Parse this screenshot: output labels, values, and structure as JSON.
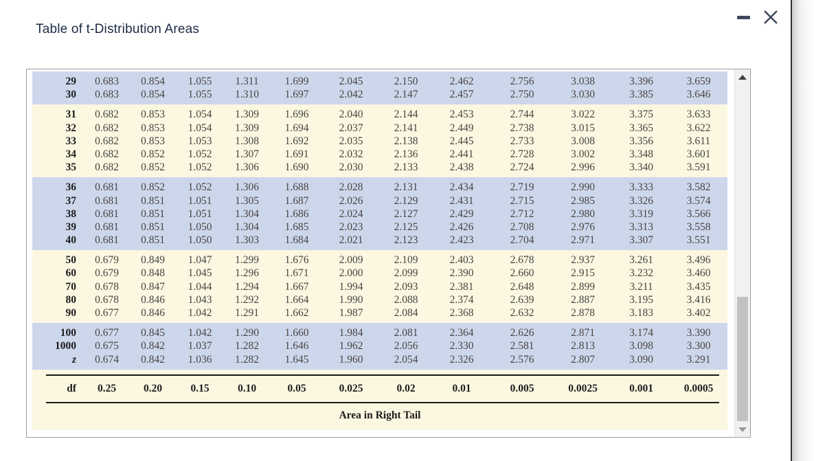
{
  "window": {
    "title": "Table of t-Distribution Areas",
    "controls": {
      "minimize_label": "minimize",
      "close_label": "close"
    }
  },
  "table": {
    "area_label": "Area in Right Tail",
    "header": {
      "df_label": "df",
      "areas": [
        "0.25",
        "0.20",
        "0.15",
        "0.10",
        "0.05",
        "0.025",
        "0.02",
        "0.01",
        "0.005",
        "0.0025",
        "0.001",
        "0.0005"
      ]
    },
    "row_groups": [
      {
        "bg": "blue",
        "rows": [
          {
            "df": "29",
            "values": [
              "0.683",
              "0.854",
              "1.055",
              "1.311",
              "1.699",
              "2.045",
              "2.150",
              "2.462",
              "2.756",
              "3.038",
              "3.396",
              "3.659"
            ]
          },
          {
            "df": "30",
            "values": [
              "0.683",
              "0.854",
              "1.055",
              "1.310",
              "1.697",
              "2.042",
              "2.147",
              "2.457",
              "2.750",
              "3.030",
              "3.385",
              "3.646"
            ]
          }
        ]
      },
      {
        "bg": "cream",
        "rows": [
          {
            "df": "31",
            "values": [
              "0.682",
              "0.853",
              "1.054",
              "1.309",
              "1.696",
              "2.040",
              "2.144",
              "2.453",
              "2.744",
              "3.022",
              "3.375",
              "3.633"
            ]
          },
          {
            "df": "32",
            "values": [
              "0.682",
              "0.853",
              "1.054",
              "1.309",
              "1.694",
              "2.037",
              "2.141",
              "2.449",
              "2.738",
              "3.015",
              "3.365",
              "3.622"
            ]
          },
          {
            "df": "33",
            "values": [
              "0.682",
              "0.853",
              "1.053",
              "1.308",
              "1.692",
              "2.035",
              "2.138",
              "2.445",
              "2.733",
              "3.008",
              "3.356",
              "3.611"
            ]
          },
          {
            "df": "34",
            "values": [
              "0.682",
              "0.852",
              "1.052",
              "1.307",
              "1.691",
              "2.032",
              "2.136",
              "2.441",
              "2.728",
              "3.002",
              "3.348",
              "3.601"
            ]
          },
          {
            "df": "35",
            "values": [
              "0.682",
              "0.852",
              "1.052",
              "1.306",
              "1.690",
              "2.030",
              "2.133",
              "2.438",
              "2.724",
              "2.996",
              "3.340",
              "3.591"
            ]
          }
        ]
      },
      {
        "bg": "blue",
        "rows": [
          {
            "df": "36",
            "values": [
              "0.681",
              "0.852",
              "1.052",
              "1.306",
              "1.688",
              "2.028",
              "2.131",
              "2.434",
              "2.719",
              "2.990",
              "3.333",
              "3.582"
            ]
          },
          {
            "df": "37",
            "values": [
              "0.681",
              "0.851",
              "1.051",
              "1.305",
              "1.687",
              "2.026",
              "2.129",
              "2.431",
              "2.715",
              "2.985",
              "3.326",
              "3.574"
            ]
          },
          {
            "df": "38",
            "values": [
              "0.681",
              "0.851",
              "1.051",
              "1.304",
              "1.686",
              "2.024",
              "2.127",
              "2.429",
              "2.712",
              "2.980",
              "3.319",
              "3.566"
            ]
          },
          {
            "df": "39",
            "values": [
              "0.681",
              "0.851",
              "1.050",
              "1.304",
              "1.685",
              "2.023",
              "2.125",
              "2.426",
              "2.708",
              "2.976",
              "3.313",
              "3.558"
            ]
          },
          {
            "df": "40",
            "values": [
              "0.681",
              "0.851",
              "1.050",
              "1.303",
              "1.684",
              "2.021",
              "2.123",
              "2.423",
              "2.704",
              "2.971",
              "3.307",
              "3.551"
            ]
          }
        ]
      },
      {
        "bg": "cream",
        "rows": [
          {
            "df": "50",
            "values": [
              "0.679",
              "0.849",
              "1.047",
              "1.299",
              "1.676",
              "2.009",
              "2.109",
              "2.403",
              "2.678",
              "2.937",
              "3.261",
              "3.496"
            ]
          },
          {
            "df": "60",
            "values": [
              "0.679",
              "0.848",
              "1.045",
              "1.296",
              "1.671",
              "2.000",
              "2.099",
              "2.390",
              "2.660",
              "2.915",
              "3.232",
              "3.460"
            ]
          },
          {
            "df": "70",
            "values": [
              "0.678",
              "0.847",
              "1.044",
              "1.294",
              "1.667",
              "1.994",
              "2.093",
              "2.381",
              "2.648",
              "2.899",
              "3.211",
              "3.435"
            ]
          },
          {
            "df": "80",
            "values": [
              "0.678",
              "0.846",
              "1.043",
              "1.292",
              "1.664",
              "1.990",
              "2.088",
              "2.374",
              "2.639",
              "2.887",
              "3.195",
              "3.416"
            ]
          },
          {
            "df": "90",
            "values": [
              "0.677",
              "0.846",
              "1.042",
              "1.291",
              "1.662",
              "1.987",
              "2.084",
              "2.368",
              "2.632",
              "2.878",
              "3.183",
              "3.402"
            ]
          }
        ]
      },
      {
        "bg": "blue",
        "rows": [
          {
            "df": "100",
            "values": [
              "0.677",
              "0.845",
              "1.042",
              "1.290",
              "1.660",
              "1.984",
              "2.081",
              "2.364",
              "2.626",
              "2.871",
              "3.174",
              "3.390"
            ]
          },
          {
            "df": "1000",
            "values": [
              "0.675",
              "0.842",
              "1.037",
              "1.282",
              "1.646",
              "1.962",
              "2.056",
              "2.330",
              "2.581",
              "2.813",
              "3.098",
              "3.300"
            ]
          },
          {
            "df": "z",
            "italic": true,
            "values": [
              "0.674",
              "0.842",
              "1.036",
              "1.282",
              "1.645",
              "1.960",
              "2.054",
              "2.326",
              "2.576",
              "2.807",
              "3.090",
              "3.291"
            ]
          }
        ]
      }
    ]
  },
  "colors": {
    "row_blue": "#cdd7ec",
    "row_cream": "#fbf7e1",
    "title_navy": "#1b2a45",
    "control_slate": "#3e4a5c",
    "rule_black": "#1a1a1a",
    "number_text": "#474440"
  }
}
